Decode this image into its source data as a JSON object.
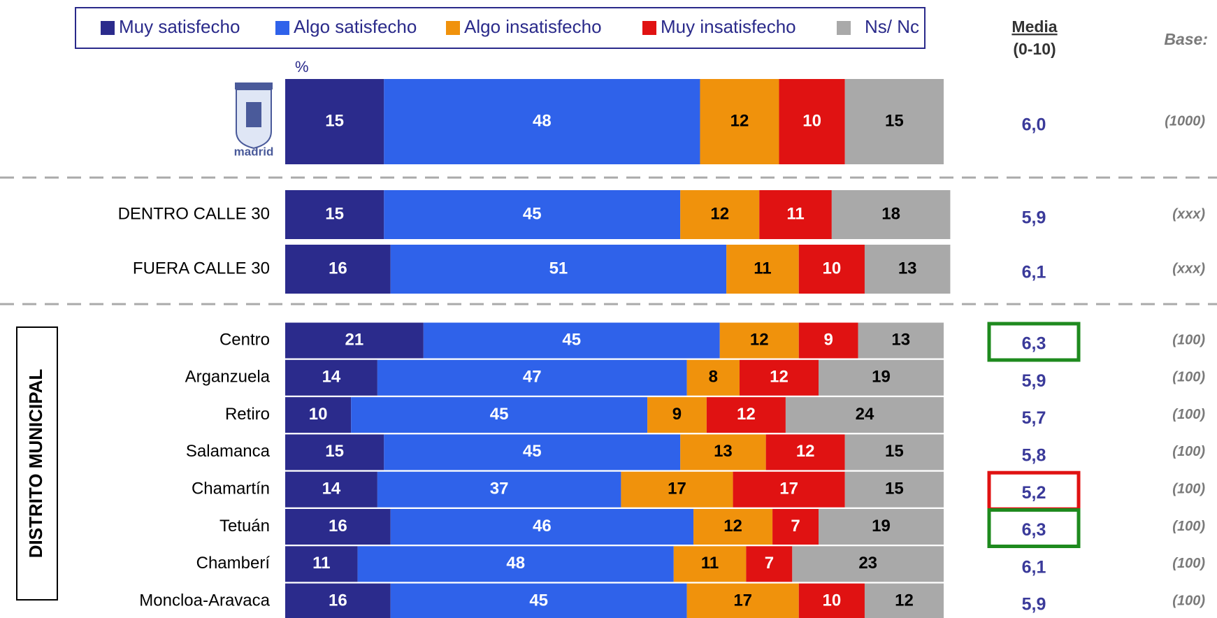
{
  "chart_data": {
    "type": "bar",
    "orientation": "horizontal",
    "stacked": true,
    "unit_label": "%",
    "logo_text": "madrid",
    "group_label": "DISTRITO MUNICIPAL",
    "media_title": "Media",
    "media_subtitle": "(0-10)",
    "base_title": "Base:",
    "categories": [
      null,
      "DENTRO CALLE 30",
      "FUERA CALLE 30",
      "Centro",
      "Arganzuela",
      "Retiro",
      "Salamanca",
      "Chamartín",
      "Tetuán",
      "Chamberí",
      "Moncloa-Aravaca"
    ],
    "xlim": [
      0,
      100
    ],
    "series": [
      {
        "name": "Muy satisfecho",
        "color": "#2b2b8c",
        "label_color": "#ffffff",
        "values": [
          15,
          15,
          16,
          21,
          14,
          10,
          15,
          14,
          16,
          11,
          16
        ]
      },
      {
        "name": "Algo satisfecho",
        "color": "#2f62ea",
        "label_color": "#ffffff",
        "values": [
          48,
          45,
          51,
          45,
          47,
          45,
          45,
          37,
          46,
          48,
          45
        ]
      },
      {
        "name": "Algo insatisfecho",
        "color": "#f0920c",
        "label_color": "#000000",
        "values": [
          12,
          12,
          11,
          12,
          8,
          9,
          13,
          17,
          12,
          11,
          17
        ]
      },
      {
        "name": "Muy insatisfecho",
        "color": "#e01212",
        "label_color": "#ffffff",
        "values": [
          10,
          11,
          10,
          9,
          12,
          12,
          12,
          17,
          7,
          7,
          10
        ]
      },
      {
        "name": "Ns/ Nc",
        "color": "#a9a9a9",
        "label_color": "#000000",
        "values": [
          15,
          18,
          13,
          13,
          19,
          24,
          15,
          15,
          19,
          23,
          12
        ]
      }
    ],
    "media": [
      6.0,
      5.9,
      6.1,
      6.3,
      5.9,
      5.7,
      5.8,
      5.2,
      6.3,
      6.1,
      5.9
    ],
    "media_labels": [
      "6,0",
      "5,9",
      "6,1",
      "6,3",
      "5,9",
      "5,7",
      "5,8",
      "5,2",
      "6,3",
      "6,1",
      "5,9"
    ],
    "media_box_colors": [
      null,
      null,
      null,
      "#1e8a1e",
      null,
      null,
      null,
      "#e01212",
      "#1e8a1e",
      null,
      null
    ],
    "base_labels": [
      "(1000)",
      "(xxx)",
      "(xxx)",
      "(100)",
      "(100)",
      "(100)",
      "(100)",
      "(100)",
      "(100)",
      "(100)",
      "(100)"
    ]
  }
}
